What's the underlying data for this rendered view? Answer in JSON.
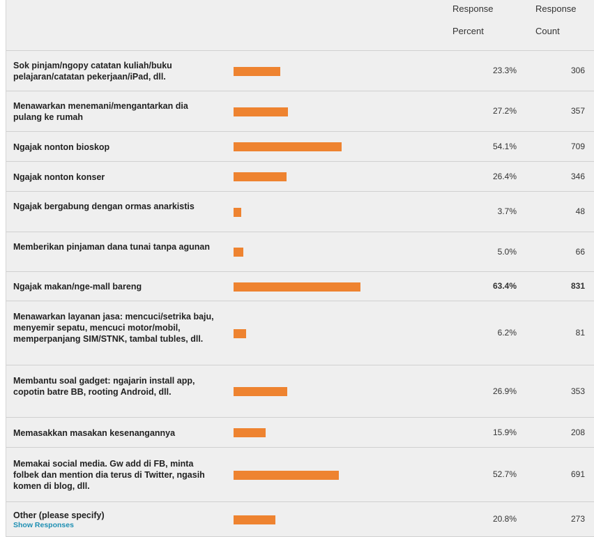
{
  "header": {
    "percent_line1": "Response",
    "percent_line2": "Percent",
    "count_line1": "Response",
    "count_line2": "Count"
  },
  "colors": {
    "bar": "#ee8330",
    "background": "#efefef",
    "link": "#1e8fb3"
  },
  "chart_data": {
    "type": "bar",
    "orientation": "horizontal",
    "xlim": [
      0,
      100
    ],
    "highlight_max": true,
    "rows": [
      {
        "label": "Sok pinjam/ngopy catatan kuliah/buku pelajaran/catatan pekerjaan/iPad, dll.",
        "percent": 23.3,
        "percent_label": "23.3%",
        "count": 306,
        "count_label": "306"
      },
      {
        "label": "Menawarkan menemani/mengantarkan dia pulang ke rumah",
        "percent": 27.2,
        "percent_label": "27.2%",
        "count": 357,
        "count_label": "357"
      },
      {
        "label": "Ngajak nonton bioskop",
        "percent": 54.1,
        "percent_label": "54.1%",
        "count": 709,
        "count_label": "709"
      },
      {
        "label": "Ngajak nonton konser",
        "percent": 26.4,
        "percent_label": "26.4%",
        "count": 346,
        "count_label": "346"
      },
      {
        "label": "Ngajak bergabung dengan ormas anarkistis",
        "percent": 3.7,
        "percent_label": "3.7%",
        "count": 48,
        "count_label": "48"
      },
      {
        "label": "Memberikan pinjaman dana tunai tanpa agunan",
        "percent": 5.0,
        "percent_label": "5.0%",
        "count": 66,
        "count_label": "66"
      },
      {
        "label": "Ngajak makan/nge-mall bareng",
        "percent": 63.4,
        "percent_label": "63.4%",
        "count": 831,
        "count_label": "831"
      },
      {
        "label": "Menawarkan layanan jasa: mencuci/setrika baju, menyemir sepatu, mencuci motor/mobil, memperpanjang SIM/STNK, tambal tubles, dll.",
        "percent": 6.2,
        "percent_label": "6.2%",
        "count": 81,
        "count_label": "81"
      },
      {
        "label": "Membantu soal gadget: ngajarin install app, copotin batre BB, rooting Android, dll.",
        "percent": 26.9,
        "percent_label": "26.9%",
        "count": 353,
        "count_label": "353"
      },
      {
        "label": "Memasakkan masakan kesenangannya",
        "percent": 15.9,
        "percent_label": "15.9%",
        "count": 208,
        "count_label": "208"
      },
      {
        "label": "Memakai social media. Gw add di FB, minta folbek dan mention dia terus di Twitter, ngasih komen di blog, dll.",
        "percent": 52.7,
        "percent_label": "52.7%",
        "count": 691,
        "count_label": "691"
      },
      {
        "label": "Other (please specify)",
        "sublabel": "Show Responses",
        "percent": 20.8,
        "percent_label": "20.8%",
        "count": 273,
        "count_label": "273"
      }
    ]
  }
}
